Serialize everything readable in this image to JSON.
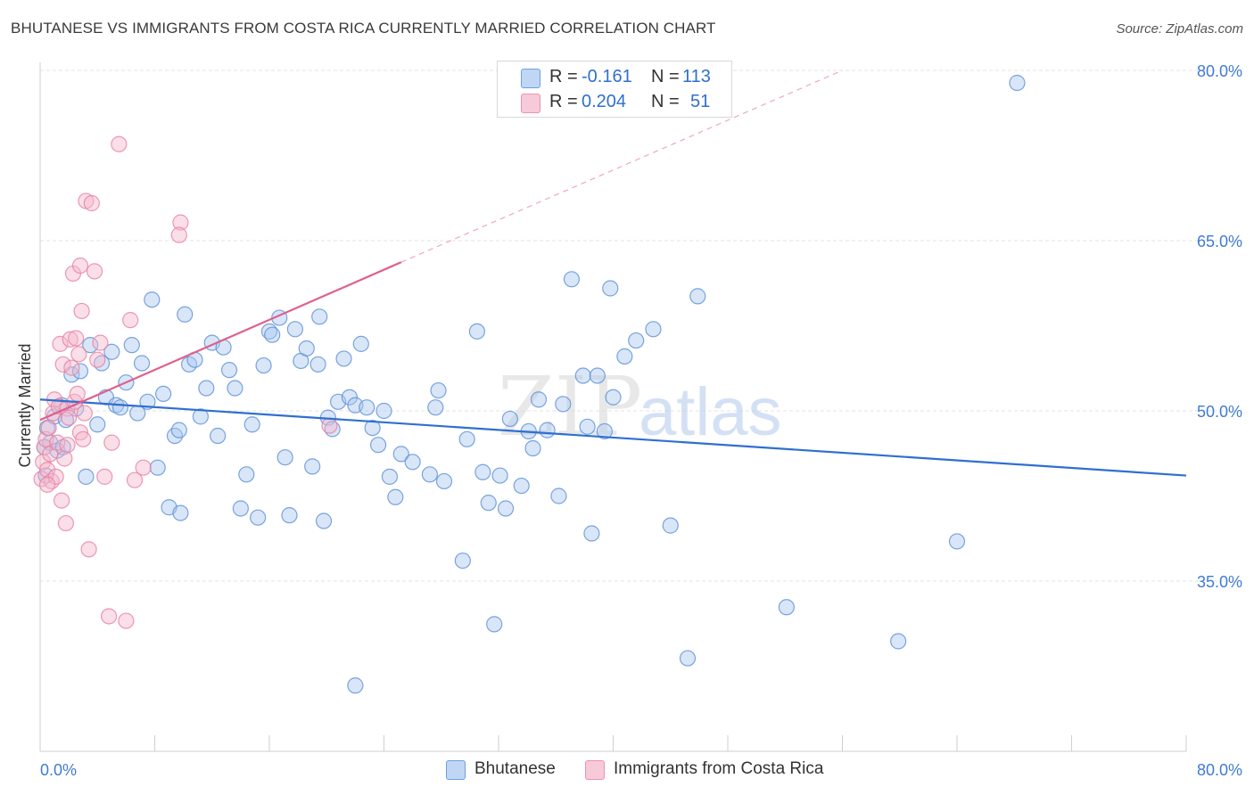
{
  "header": {
    "title": "BHUTANESE VS IMMIGRANTS FROM COSTA RICA CURRENTLY MARRIED CORRELATION CHART",
    "source": "Source: ZipAtlas.com"
  },
  "watermark": {
    "zip": "ZIP",
    "atlas": "atlas"
  },
  "legend": {
    "rows": [
      {
        "r_label": "R =",
        "r_value": "-0.161",
        "n_label": "N =",
        "n_value": "113"
      },
      {
        "r_label": "R =",
        "r_value": "0.204",
        "n_label": "N =",
        "n_value": "51"
      }
    ]
  },
  "colors": {
    "blue_fill": "#a8c8f0",
    "blue_stroke": "#5b8fd6",
    "blue_line": "#2f6fd0",
    "pink_fill": "#f5b8cb",
    "pink_stroke": "#e87fa0",
    "pink_line": "#e0608c",
    "axis_text": "#3f7bd4",
    "grid": "#e3e3e3"
  },
  "chart_data": {
    "type": "scatter",
    "title": "BHUTANESE VS IMMIGRANTS FROM COSTA RICA CURRENTLY MARRIED CORRELATION CHART",
    "xlabel": "",
    "ylabel": "Currently Married",
    "xlim": [
      0,
      80
    ],
    "ylim": [
      20,
      82
    ],
    "x_tick_labels": [
      "0.0%",
      "80.0%"
    ],
    "y_ticks": [
      35,
      50,
      65,
      80
    ],
    "y_tick_labels": [
      "35.0%",
      "50.0%",
      "65.0%",
      "80.0%"
    ],
    "grid": true,
    "legend_position": "top-center",
    "series": [
      {
        "name": "Bhutanese",
        "r": -0.161,
        "n": 113,
        "trend": {
          "x0": 0,
          "y0": 51.0,
          "x1": 80,
          "y1": 44.3
        },
        "points": [
          [
            0.3,
            46.8
          ],
          [
            0.5,
            48.5
          ],
          [
            0.7,
            47.2
          ],
          [
            1.0,
            49.5
          ],
          [
            1.2,
            46.5
          ],
          [
            1.5,
            50.5
          ],
          [
            1.8,
            49.2
          ],
          [
            2.2,
            53.2
          ],
          [
            2.5,
            50.2
          ],
          [
            2.8,
            53.5
          ],
          [
            3.2,
            44.2
          ],
          [
            3.5,
            55.8
          ],
          [
            4.0,
            48.8
          ],
          [
            4.3,
            54.2
          ],
          [
            4.6,
            51.2
          ],
          [
            5.0,
            55.2
          ],
          [
            5.3,
            50.5
          ],
          [
            5.6,
            50.3
          ],
          [
            6.0,
            52.5
          ],
          [
            6.4,
            55.8
          ],
          [
            6.8,
            49.8
          ],
          [
            7.1,
            54.2
          ],
          [
            7.5,
            50.8
          ],
          [
            7.8,
            59.8
          ],
          [
            8.2,
            45.0
          ],
          [
            8.6,
            51.5
          ],
          [
            9.0,
            41.5
          ],
          [
            9.4,
            47.8
          ],
          [
            9.7,
            48.3
          ],
          [
            10.1,
            58.5
          ],
          [
            10.4,
            54.1
          ],
          [
            10.8,
            54.5
          ],
          [
            11.2,
            49.5
          ],
          [
            11.6,
            52.0
          ],
          [
            12.0,
            56.0
          ],
          [
            12.4,
            47.8
          ],
          [
            12.8,
            55.6
          ],
          [
            13.2,
            53.6
          ],
          [
            13.6,
            52.0
          ],
          [
            14.0,
            41.4
          ],
          [
            14.4,
            44.4
          ],
          [
            14.8,
            48.8
          ],
          [
            15.2,
            40.6
          ],
          [
            15.6,
            54.0
          ],
          [
            16.0,
            57.0
          ],
          [
            16.2,
            56.7
          ],
          [
            16.7,
            58.2
          ],
          [
            17.1,
            45.9
          ],
          [
            17.4,
            40.8
          ],
          [
            17.8,
            57.2
          ],
          [
            18.2,
            54.4
          ],
          [
            18.6,
            55.5
          ],
          [
            19.0,
            45.1
          ],
          [
            19.4,
            54.1
          ],
          [
            19.8,
            40.3
          ],
          [
            20.1,
            49.4
          ],
          [
            20.4,
            48.4
          ],
          [
            20.8,
            50.8
          ],
          [
            21.2,
            54.6
          ],
          [
            21.6,
            51.2
          ],
          [
            22.0,
            50.5
          ],
          [
            22.4,
            55.9
          ],
          [
            22.8,
            50.3
          ],
          [
            23.2,
            48.5
          ],
          [
            23.6,
            47.0
          ],
          [
            24.0,
            50.0
          ],
          [
            24.4,
            44.2
          ],
          [
            24.8,
            42.4
          ],
          [
            25.2,
            46.2
          ],
          [
            26.0,
            45.5
          ],
          [
            27.2,
            44.4
          ],
          [
            27.6,
            50.3
          ],
          [
            27.8,
            51.8
          ],
          [
            28.2,
            43.8
          ],
          [
            29.5,
            36.8
          ],
          [
            29.8,
            47.5
          ],
          [
            30.5,
            57.0
          ],
          [
            30.9,
            44.6
          ],
          [
            31.3,
            41.9
          ],
          [
            31.7,
            31.2
          ],
          [
            32.1,
            44.3
          ],
          [
            32.5,
            41.4
          ],
          [
            32.8,
            49.3
          ],
          [
            33.6,
            43.4
          ],
          [
            34.1,
            48.2
          ],
          [
            34.4,
            46.7
          ],
          [
            34.8,
            51.0
          ],
          [
            35.4,
            48.3
          ],
          [
            36.2,
            42.5
          ],
          [
            36.5,
            50.6
          ],
          [
            37.1,
            61.6
          ],
          [
            37.9,
            53.1
          ],
          [
            38.2,
            48.6
          ],
          [
            38.5,
            39.2
          ],
          [
            38.9,
            53.1
          ],
          [
            39.4,
            48.2
          ],
          [
            39.8,
            60.8
          ],
          [
            40.0,
            51.2
          ],
          [
            40.8,
            54.8
          ],
          [
            41.6,
            56.2
          ],
          [
            42.8,
            57.2
          ],
          [
            44.0,
            39.9
          ],
          [
            45.2,
            28.2
          ],
          [
            45.9,
            60.1
          ],
          [
            52.1,
            32.7
          ],
          [
            59.9,
            29.7
          ],
          [
            64.0,
            38.5
          ],
          [
            68.2,
            78.9
          ],
          [
            0.4,
            44.3
          ],
          [
            1.6,
            46.8
          ],
          [
            9.8,
            41.0
          ],
          [
            22.0,
            25.8
          ],
          [
            19.5,
            58.3
          ]
        ]
      },
      {
        "name": "Immigrants from Costa Rica",
        "r": 0.204,
        "n": 51,
        "trend": {
          "x0": 0,
          "y0": 49.2,
          "x1": 25.2,
          "y1": 63.1
        },
        "trend_dashed_extension": {
          "x0": 25.2,
          "y0": 63.1,
          "x1": 56,
          "y1": 80
        },
        "points": [
          [
            0.1,
            44.0
          ],
          [
            0.2,
            45.5
          ],
          [
            0.3,
            46.8
          ],
          [
            0.4,
            47.5
          ],
          [
            0.5,
            44.8
          ],
          [
            0.6,
            48.5
          ],
          [
            0.7,
            46.2
          ],
          [
            0.8,
            43.8
          ],
          [
            0.9,
            49.8
          ],
          [
            1.0,
            51.0
          ],
          [
            1.1,
            44.2
          ],
          [
            1.2,
            47.2
          ],
          [
            1.3,
            50.4
          ],
          [
            1.4,
            55.9
          ],
          [
            1.5,
            42.1
          ],
          [
            1.6,
            54.1
          ],
          [
            1.7,
            45.8
          ],
          [
            1.8,
            40.1
          ],
          [
            1.9,
            50.2
          ],
          [
            2.0,
            49.4
          ],
          [
            2.1,
            56.3
          ],
          [
            2.2,
            53.8
          ],
          [
            2.3,
            62.1
          ],
          [
            2.4,
            50.8
          ],
          [
            2.5,
            56.4
          ],
          [
            2.6,
            51.5
          ],
          [
            2.7,
            55.0
          ],
          [
            2.8,
            48.1
          ],
          [
            2.9,
            58.8
          ],
          [
            3.0,
            47.5
          ],
          [
            3.1,
            49.8
          ],
          [
            3.2,
            68.5
          ],
          [
            3.4,
            37.8
          ],
          [
            3.6,
            68.3
          ],
          [
            3.8,
            62.3
          ],
          [
            4.0,
            54.5
          ],
          [
            4.2,
            56.0
          ],
          [
            4.5,
            44.2
          ],
          [
            4.8,
            31.9
          ],
          [
            5.0,
            47.2
          ],
          [
            5.5,
            73.5
          ],
          [
            6.0,
            31.5
          ],
          [
            6.3,
            58.0
          ],
          [
            6.6,
            43.9
          ],
          [
            7.2,
            45.0
          ],
          [
            9.8,
            66.6
          ],
          [
            9.7,
            65.5
          ],
          [
            20.2,
            48.7
          ],
          [
            2.8,
            62.8
          ],
          [
            0.5,
            43.5
          ],
          [
            1.9,
            47.0
          ]
        ]
      }
    ]
  },
  "bottom_legend": [
    {
      "label": "Bhutanese"
    },
    {
      "label": "Immigrants from Costa Rica"
    }
  ]
}
